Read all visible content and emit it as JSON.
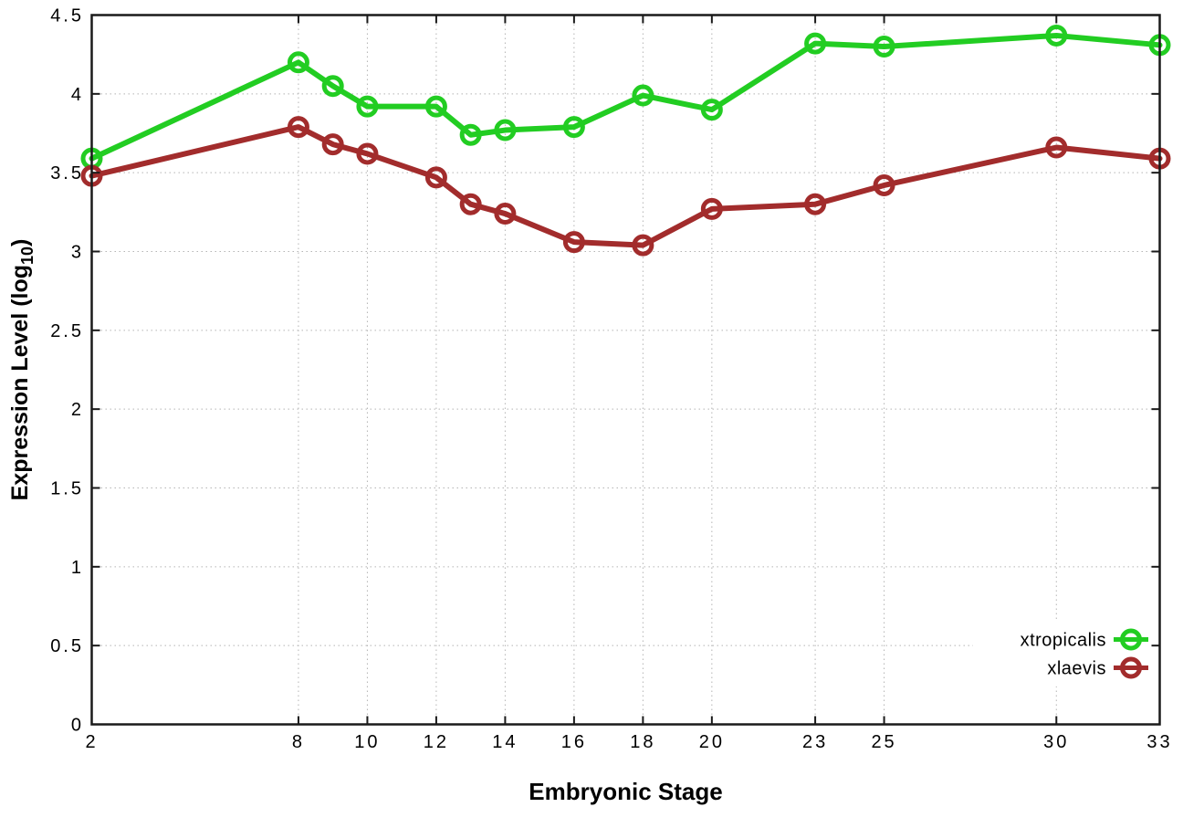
{
  "figure": {
    "background": "#ffffff",
    "axis_color": "#1a1a1a",
    "grid_color": "#b4b4b4",
    "text_color": "#000000"
  },
  "chart_data": {
    "type": "line",
    "title": "",
    "xlabel": "Embryonic Stage",
    "ylabel": "Expression Level (log10)",
    "ylabel_prefix": "Expression Level (log",
    "ylabel_sub": "10",
    "ylabel_suffix": ")",
    "xlim": [
      2,
      33
    ],
    "ylim": [
      0,
      4.5
    ],
    "x_ticks": [
      2,
      8,
      10,
      12,
      14,
      16,
      18,
      20,
      23,
      25,
      30,
      33
    ],
    "y_ticks": [
      "0",
      "0.5",
      "1",
      "1.5",
      "2",
      "2.5",
      "3",
      "3.5",
      "4",
      "4.5"
    ],
    "grid": true,
    "grid_style": "dotted",
    "legend_position": "inside-bottom-right",
    "x": [
      2,
      8,
      9,
      10,
      12,
      13,
      14,
      16,
      18,
      20,
      23,
      25,
      30,
      33
    ],
    "series": [
      {
        "name": "xtropicalis",
        "color": "#22cd22",
        "marker": "open-circle",
        "values": [
          3.59,
          4.2,
          4.05,
          3.92,
          3.92,
          3.74,
          3.77,
          3.79,
          3.99,
          3.9,
          4.32,
          4.3,
          4.37,
          4.31
        ]
      },
      {
        "name": "xlaevis",
        "color": "#a22c2c",
        "marker": "open-circle",
        "values": [
          3.48,
          3.79,
          3.68,
          3.62,
          3.47,
          3.3,
          3.24,
          3.06,
          3.04,
          3.27,
          3.3,
          3.42,
          3.66,
          3.59
        ]
      }
    ]
  }
}
